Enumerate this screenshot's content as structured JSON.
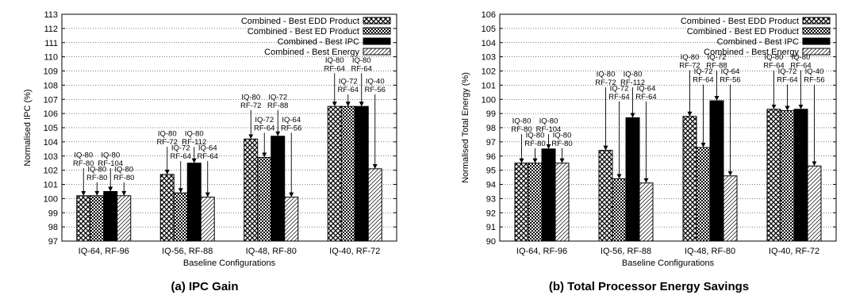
{
  "captions": [
    "(a) IPC Gain",
    "(b) Total Processor Energy Savings"
  ],
  "patterns": {
    "edd": {
      "kind": "crosshatch",
      "color": "#000000"
    },
    "ed": {
      "kind": "checker",
      "color": "#000000"
    },
    "ipc": {
      "kind": "solid",
      "color": "#000000"
    },
    "energy": {
      "kind": "diagonal",
      "color": "#000000"
    }
  },
  "chart_data": [
    {
      "type": "bar",
      "ylabel": "Normalised IPC (%)",
      "xlabel": "Baseline Configurations",
      "ylim": [
        97,
        113
      ],
      "ytick_step": 1,
      "grid": "y-dotted",
      "legend_position": "top-right",
      "categories": [
        "IQ-64, RF-96",
        "IQ-56, RF-88",
        "IQ-48, RF-80",
        "IQ-40, RF-72"
      ],
      "series": [
        {
          "name": "Combined - Best EDD Product",
          "pattern": "edd",
          "values": [
            100.2,
            101.7,
            104.2,
            106.5
          ]
        },
        {
          "name": "Combined - Best ED Product",
          "pattern": "ed",
          "values": [
            100.2,
            100.4,
            102.9,
            106.5
          ]
        },
        {
          "name": "Combined - Best IPC",
          "pattern": "ipc",
          "values": [
            100.5,
            102.5,
            104.4,
            106.5
          ]
        },
        {
          "name": "Combined - Best Energy",
          "pattern": "energy",
          "values": [
            100.2,
            100.1,
            100.1,
            102.1
          ]
        }
      ],
      "annotations": [
        [
          {
            "lines": [
              "IQ-80",
              "RF-80"
            ],
            "ty": 102.9
          },
          {
            "lines": [
              "IQ-80",
              "RF-80"
            ],
            "ty": 101.9
          },
          {
            "lines": [
              "IQ-80",
              "RF-104"
            ],
            "ty": 102.9
          },
          {
            "lines": [
              "IQ-80",
              "RF-80"
            ],
            "ty": 101.9
          }
        ],
        [
          {
            "lines": [
              "IQ-80",
              "RF-72"
            ],
            "ty": 104.4
          },
          {
            "lines": [
              "IQ-72",
              "RF-64"
            ],
            "ty": 103.4
          },
          {
            "lines": [
              "IQ-80",
              "RF-112"
            ],
            "ty": 104.4
          },
          {
            "lines": [
              "IQ-64",
              "RF-64"
            ],
            "ty": 103.4
          }
        ],
        [
          {
            "lines": [
              "IQ-80",
              "RF-72"
            ],
            "ty": 107.0
          },
          {
            "lines": [
              "IQ-72",
              "RF-64"
            ],
            "ty": 105.4
          },
          {
            "lines": [
              "IQ-72",
              "RF-88"
            ],
            "ty": 107.0
          },
          {
            "lines": [
              "IQ-64",
              "RF-56"
            ],
            "ty": 105.4
          }
        ],
        [
          {
            "lines": [
              "IQ-80",
              "RF-64"
            ],
            "ty": 109.6
          },
          {
            "lines": [
              "IQ-72",
              "RF-64"
            ],
            "ty": 108.1
          },
          {
            "lines": [
              "IQ-80",
              "RF-64"
            ],
            "ty": 109.6
          },
          {
            "lines": [
              "IQ-40",
              "RF-56"
            ],
            "ty": 108.1
          }
        ]
      ]
    },
    {
      "type": "bar",
      "ylabel": "Normalised Total Energy (%)",
      "xlabel": "Baseline Configurations",
      "ylim": [
        90,
        106
      ],
      "ytick_step": 1,
      "grid": "y-dotted",
      "legend_position": "top-right",
      "categories": [
        "IQ-64, RF-96",
        "IQ-56, RF-88",
        "IQ-48, RF-80",
        "IQ-40, RF-72"
      ],
      "series": [
        {
          "name": "Combined - Best EDD Product",
          "pattern": "edd",
          "values": [
            95.5,
            96.4,
            98.8,
            99.3
          ]
        },
        {
          "name": "Combined - Best ED Product",
          "pattern": "ed",
          "values": [
            95.5,
            94.4,
            96.6,
            99.2
          ]
        },
        {
          "name": "Combined - Best IPC",
          "pattern": "ipc",
          "values": [
            96.5,
            98.7,
            99.9,
            99.3
          ]
        },
        {
          "name": "Combined - Best Energy",
          "pattern": "energy",
          "values": [
            95.5,
            94.1,
            94.6,
            95.3
          ]
        }
      ],
      "annotations": [
        [
          {
            "lines": [
              "IQ-80",
              "RF-80"
            ],
            "ty": 98.3
          },
          {
            "lines": [
              "IQ-80",
              "RF-80"
            ],
            "ty": 97.3
          },
          {
            "lines": [
              "IQ-80",
              "RF-104"
            ],
            "ty": 98.3
          },
          {
            "lines": [
              "IQ-80",
              "RF-80"
            ],
            "ty": 97.3
          }
        ],
        [
          {
            "lines": [
              "IQ-80",
              "RF-72"
            ],
            "ty": 101.6
          },
          {
            "lines": [
              "IQ-72",
              "RF-64"
            ],
            "ty": 100.6
          },
          {
            "lines": [
              "IQ-80",
              "RF-112"
            ],
            "ty": 101.6
          },
          {
            "lines": [
              "IQ-64",
              "RF-64"
            ],
            "ty": 100.6
          }
        ],
        [
          {
            "lines": [
              "IQ-80",
              "RF-72"
            ],
            "ty": 102.8
          },
          {
            "lines": [
              "IQ-72",
              "RF-64"
            ],
            "ty": 101.8
          },
          {
            "lines": [
              "IQ-72",
              "RF-88"
            ],
            "ty": 102.8
          },
          {
            "lines": [
              "IQ-64",
              "RF-56"
            ],
            "ty": 101.8
          }
        ],
        [
          {
            "lines": [
              "IQ-80",
              "RF-64"
            ],
            "ty": 102.8
          },
          {
            "lines": [
              "IQ-72",
              "RF-64"
            ],
            "ty": 101.8
          },
          {
            "lines": [
              "IQ-80",
              "RF-64"
            ],
            "ty": 102.8
          },
          {
            "lines": [
              "IQ-40",
              "RF-56"
            ],
            "ty": 101.8
          }
        ]
      ]
    }
  ]
}
